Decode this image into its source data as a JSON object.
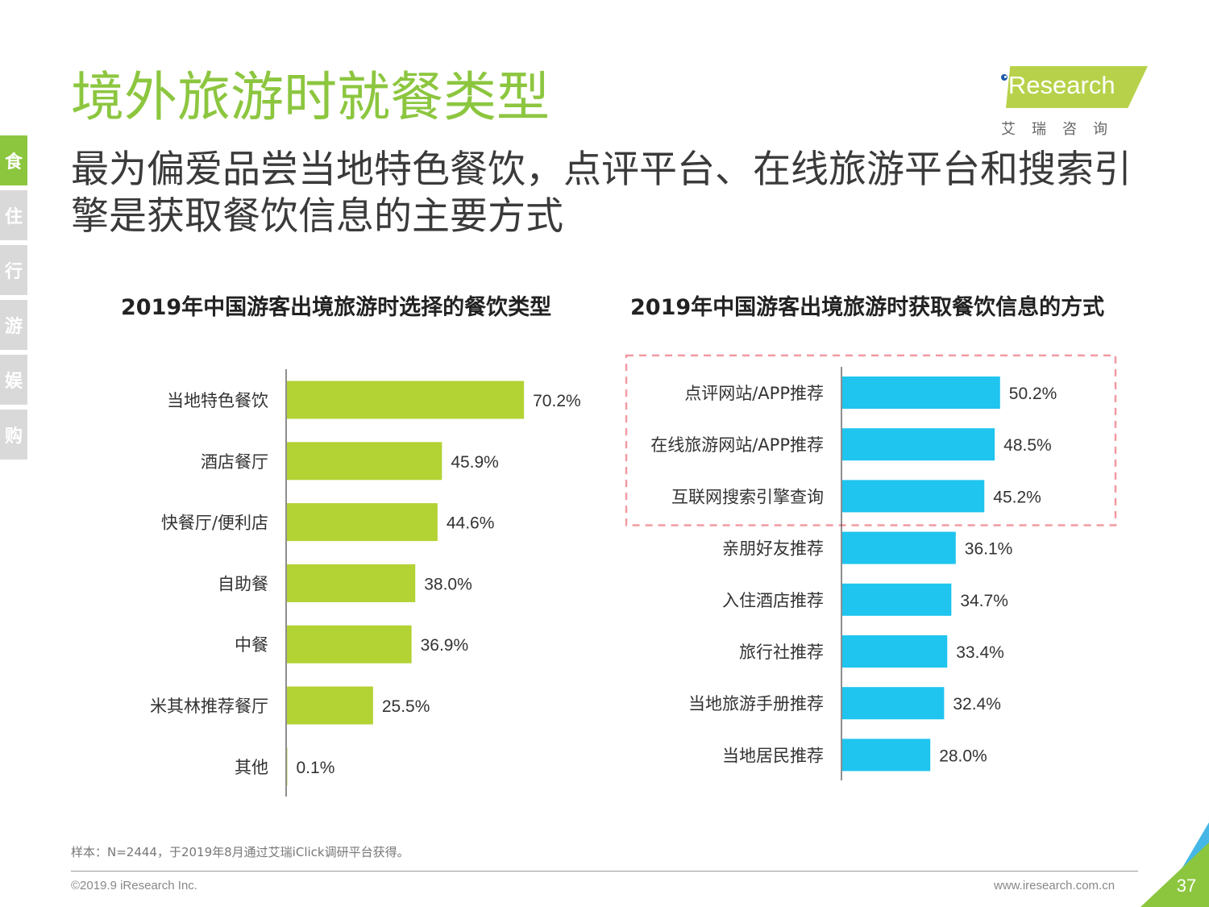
{
  "title": "境外旅游时就餐类型",
  "subtitle": "最为偏爱品尝当地特色餐饮，点评平台、在线旅游平台和搜索引擎是获取餐饮信息的主要方式",
  "side_nav": [
    "食",
    "住",
    "行",
    "游",
    "娱",
    "购"
  ],
  "logo": {
    "text": "iResearch",
    "cn": "艾瑞咨询"
  },
  "chart_data": [
    {
      "type": "bar",
      "orientation": "horizontal",
      "title": "2019年中国游客出境旅游时选择的餐饮类型",
      "color": "#b3d234",
      "categories": [
        "当地特色餐饮",
        "酒店餐厅",
        "快餐厅/便利店",
        "自助餐",
        "中餐",
        "米其林推荐餐厅",
        "其他"
      ],
      "values": [
        70.2,
        45.9,
        44.6,
        38.0,
        36.9,
        25.5,
        0.1
      ],
      "labels": [
        "70.2%",
        "45.9%",
        "44.6%",
        "38.0%",
        "36.9%",
        "25.5%",
        "0.1%"
      ]
    },
    {
      "type": "bar",
      "orientation": "horizontal",
      "title": "2019年中国游客出境旅游时获取餐饮信息的方式",
      "color": "#1fc4ef",
      "highlight_top": 3,
      "highlight_color": "#f29aa2",
      "categories": [
        "点评网站/APP推荐",
        "在线旅游网站/APP推荐",
        "互联网搜索引擎查询",
        "亲朋好友推荐",
        "入住酒店推荐",
        "旅行社推荐",
        "当地旅游手册推荐",
        "当地居民推荐"
      ],
      "values": [
        50.2,
        48.5,
        45.2,
        36.1,
        34.7,
        33.4,
        32.4,
        28.0
      ],
      "labels": [
        "50.2%",
        "48.5%",
        "45.2%",
        "36.1%",
        "34.7%",
        "33.4%",
        "32.4%",
        "28.0%"
      ]
    }
  ],
  "footnote": "样本：N=2444，于2019年8月通过艾瑞iClick调研平台获得。",
  "copyright": "©2019.9 iResearch Inc.",
  "website": "www.iresearch.com.cn",
  "page_number": "37"
}
